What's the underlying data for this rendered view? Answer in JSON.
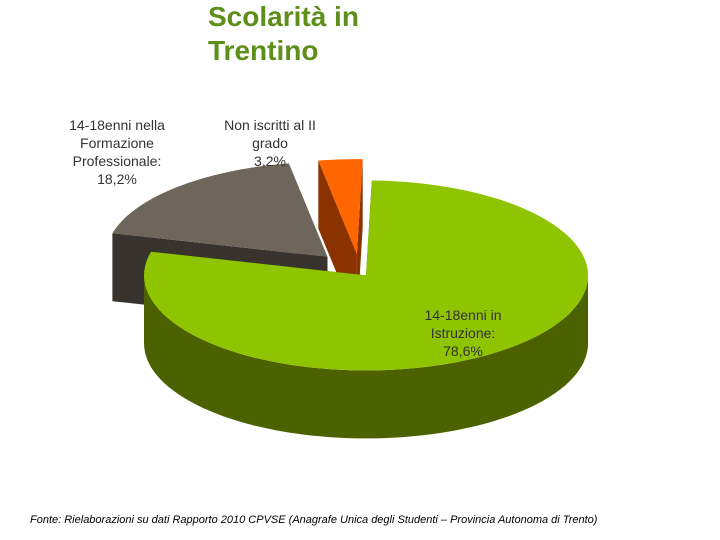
{
  "chart_data": {
    "type": "pie3d",
    "title": "Scolarità in Trentino",
    "categories": [
      "14-18enni in Istruzione:",
      "14-18enni nella Formazione Professionale:",
      "Non iscritti al II grado"
    ],
    "values": [
      78.6,
      18.2,
      3.2
    ],
    "value_labels": [
      "78,6%",
      "18,2%",
      "3,2%"
    ],
    "colors": [
      "#8fc400",
      "#6e665a",
      "#ff6600"
    ],
    "side_colors": [
      "#4c6200",
      "#38332c",
      "#8a3300"
    ],
    "source": "Fonte: Rielaborazioni su dati Rapporto 2010 CPVSE (Anagrafe Unica degli Studenti – Provincia Autonoma di Trento)"
  }
}
